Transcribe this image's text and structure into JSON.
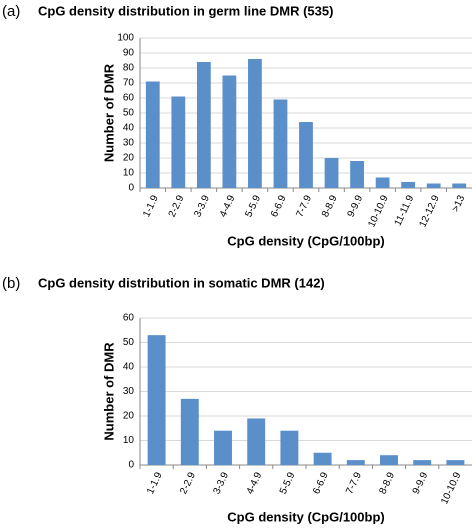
{
  "chart_data": [
    {
      "type": "bar",
      "panel_label": "(a)",
      "title": "CpG density distribution in germ line DMR (535)",
      "xlabel": "CpG density (CpG/100bp)",
      "ylabel": "Number of DMR",
      "categories": [
        "1-1.9",
        "2-2.9",
        "3-3.9",
        "4-4.9",
        "5-5.9",
        "6-6.9",
        "7-7.9",
        "8-8.9",
        "9-9.9",
        "10-10.9",
        "11-11.9",
        "12-12.9",
        ">13"
      ],
      "values": [
        71,
        61,
        84,
        75,
        86,
        59,
        44,
        20,
        18,
        7,
        4,
        3,
        3
      ],
      "color": "#5b8fc9",
      "ylim": [
        0,
        100
      ],
      "yticks": [
        0,
        10,
        20,
        30,
        40,
        50,
        60,
        70,
        80,
        90,
        100
      ],
      "grid": true
    },
    {
      "type": "bar",
      "panel_label": "(b)",
      "title": "CpG density distribution in somatic DMR (142)",
      "xlabel": "CpG density (CpG/100bp)",
      "ylabel": "Number of DMR",
      "categories": [
        "1-1.9",
        "2-2.9",
        "3-3.9",
        "4-4.9",
        "5-5.9",
        "6-6.9",
        "7-7.9",
        "8-8.9",
        "9-9.9",
        "10-10.9"
      ],
      "values": [
        53,
        27,
        14,
        19,
        14,
        5,
        2,
        4,
        2,
        2
      ],
      "color": "#5b8fc9",
      "ylim": [
        0,
        60
      ],
      "yticks": [
        0,
        10,
        20,
        30,
        40,
        50,
        60
      ],
      "grid": true
    }
  ]
}
